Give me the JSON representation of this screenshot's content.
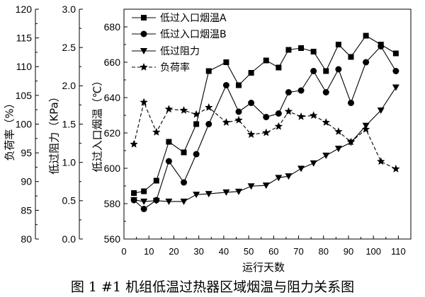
{
  "caption": "图 1 #1 机组低温过热器区域烟温与阻力关系图",
  "chart_data": {
    "type": "line",
    "x": [
      4,
      8,
      13,
      18,
      24,
      29,
      34,
      41,
      46,
      51,
      57,
      62,
      66,
      71,
      76,
      81,
      86,
      91,
      97,
      103,
      109
    ],
    "xlabel": "运行天数",
    "xlim": [
      0,
      115
    ],
    "xticks": [
      "0",
      "10",
      "20",
      "30",
      "40",
      "50",
      "60",
      "70",
      "80",
      "90",
      "100",
      "110"
    ],
    "y_axes": [
      {
        "label": "负荷率（%）",
        "ylim": [
          80,
          120
        ],
        "ticks": [
          "80",
          "85",
          "90",
          "95",
          "100",
          "105",
          "110",
          "115",
          "120"
        ]
      },
      {
        "label": "低过阻力（KPa）",
        "ylim": [
          0,
          3
        ],
        "ticks": [
          "0.0",
          "0.5",
          "1.0",
          "1.5",
          "2.0",
          "2.5",
          "3.0"
        ]
      },
      {
        "label": "低过入口烟温（℃）",
        "ylim": [
          560,
          690
        ],
        "ticks": [
          "560",
          "580",
          "600",
          "620",
          "640",
          "660",
          "680"
        ]
      }
    ],
    "series": [
      {
        "name": "低过入口烟温A",
        "y_axis": 2,
        "marker": "square",
        "line": "solid",
        "values": [
          586,
          587,
          593,
          615,
          609,
          625,
          655,
          660,
          647,
          654,
          661,
          657,
          667,
          668,
          666,
          655,
          670,
          663,
          675,
          670,
          665
        ]
      },
      {
        "name": "低过入口烟温B",
        "y_axis": 2,
        "marker": "circle",
        "line": "solid",
        "values": [
          582,
          577,
          582,
          604,
          592,
          608,
          625,
          647,
          632,
          637,
          629,
          631,
          643,
          644,
          655,
          643,
          656,
          637,
          660,
          669,
          655
        ]
      },
      {
        "name": "低过阻力",
        "y_axis": 1,
        "marker": "triangle-down",
        "line": "solid",
        "values": [
          0.51,
          0.49,
          0.5,
          0.49,
          0.49,
          0.58,
          0.59,
          0.61,
          0.62,
          0.69,
          0.7,
          0.8,
          0.82,
          0.92,
          0.99,
          1.09,
          1.18,
          1.26,
          1.48,
          1.68,
          1.98
        ]
      },
      {
        "name": "负荷率",
        "y_axis": 0,
        "marker": "star",
        "line": "dashed",
        "values": [
          96.5,
          103.8,
          98.6,
          102.6,
          102.4,
          101.7,
          102.9,
          100.3,
          100.7,
          98.2,
          98.5,
          99.6,
          102.2,
          101.3,
          101.5,
          100.3,
          98.7,
          96.9,
          99.1,
          93.5,
          92.2
        ]
      }
    ],
    "legend": "top-left",
    "grid": false,
    "color": "#000000"
  }
}
